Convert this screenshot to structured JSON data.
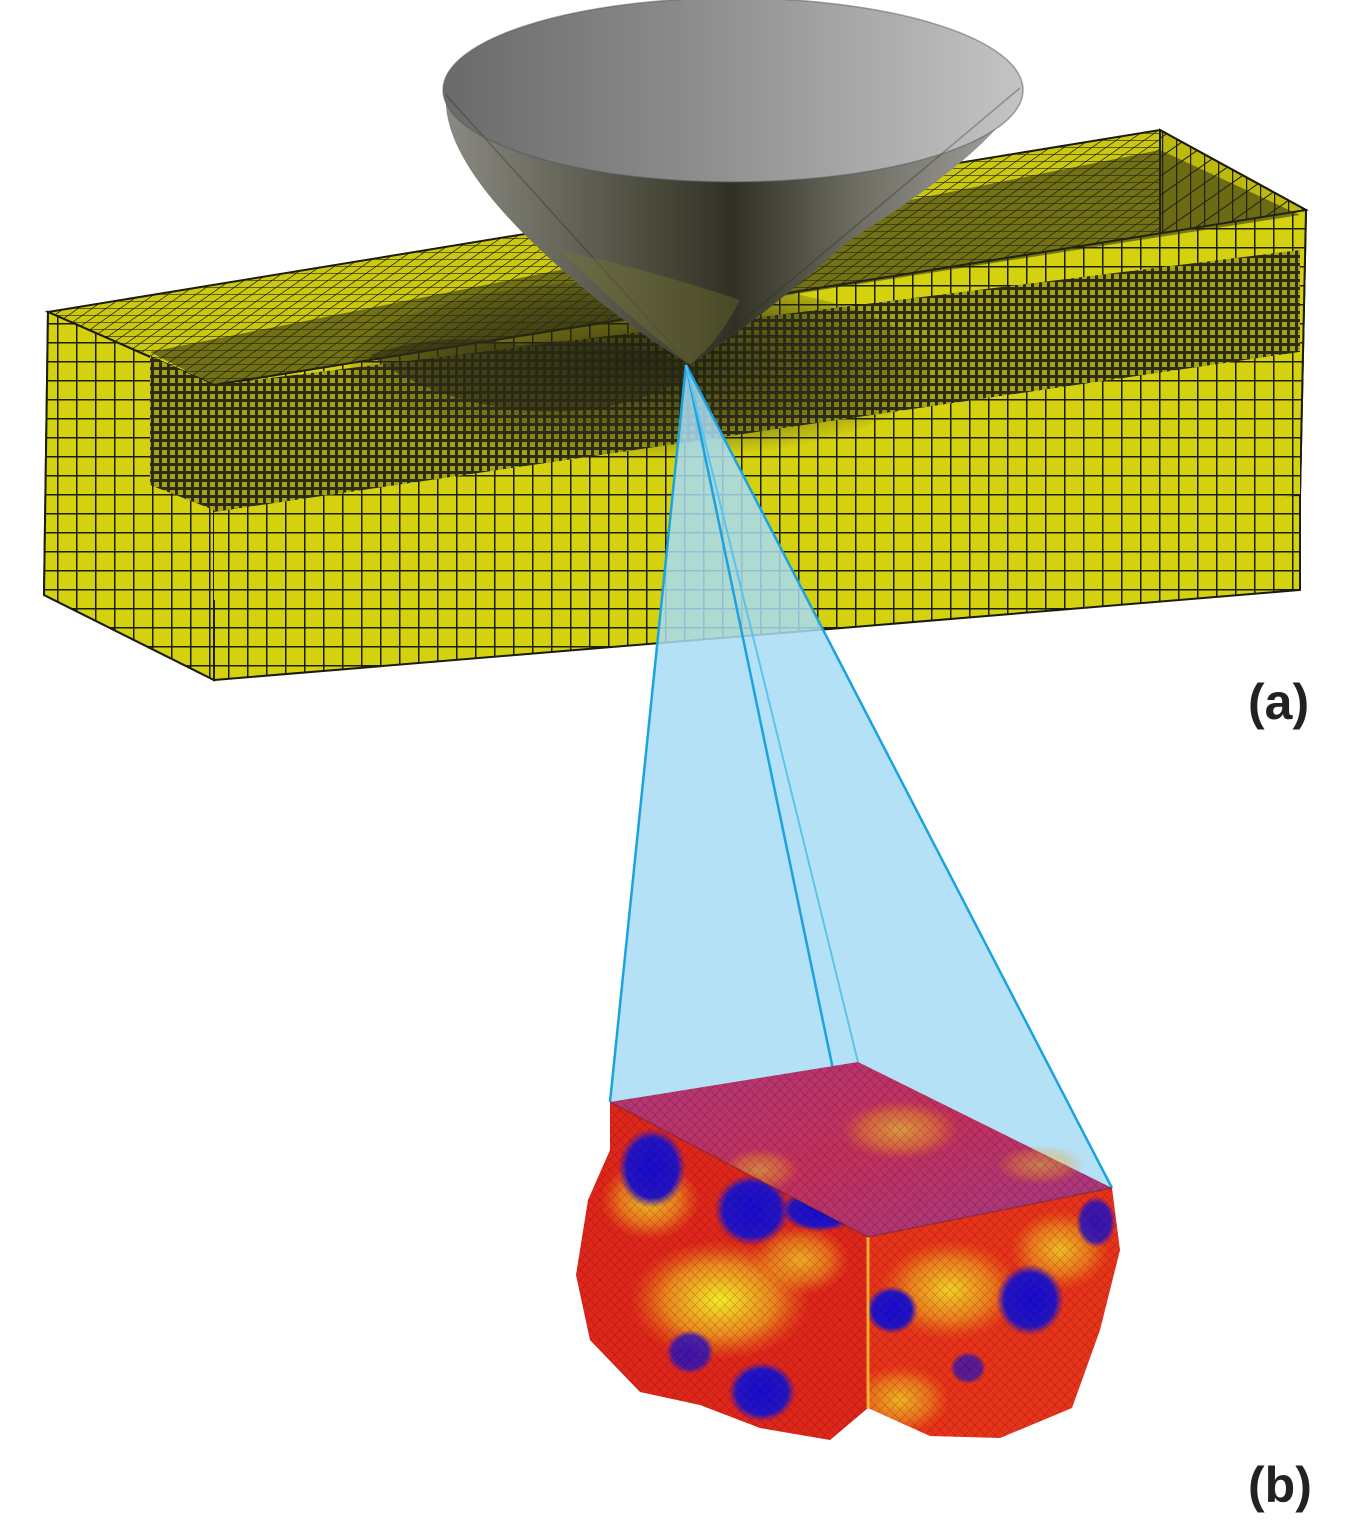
{
  "labels": {
    "a": "(a)",
    "b": "(b)"
  },
  "colors": {
    "mesh_fill": "#d4d10f",
    "mesh_line": "#1b1b0c",
    "indenter_dark": "#3a3a30",
    "indenter_light": "#c8c8c8",
    "zoom_cone": "#a8dcf5",
    "zoom_edge": "#1aa3e0",
    "grain_red": "#e0261b",
    "grain_orange": "#f07a16",
    "grain_yellow": "#e8e623",
    "grain_blue": "#1010c8"
  },
  "icons": {
    "indenter": "conical-indenter-icon",
    "mesh": "finite-element-mesh-beam",
    "rve": "polycrystal-rve-block"
  }
}
